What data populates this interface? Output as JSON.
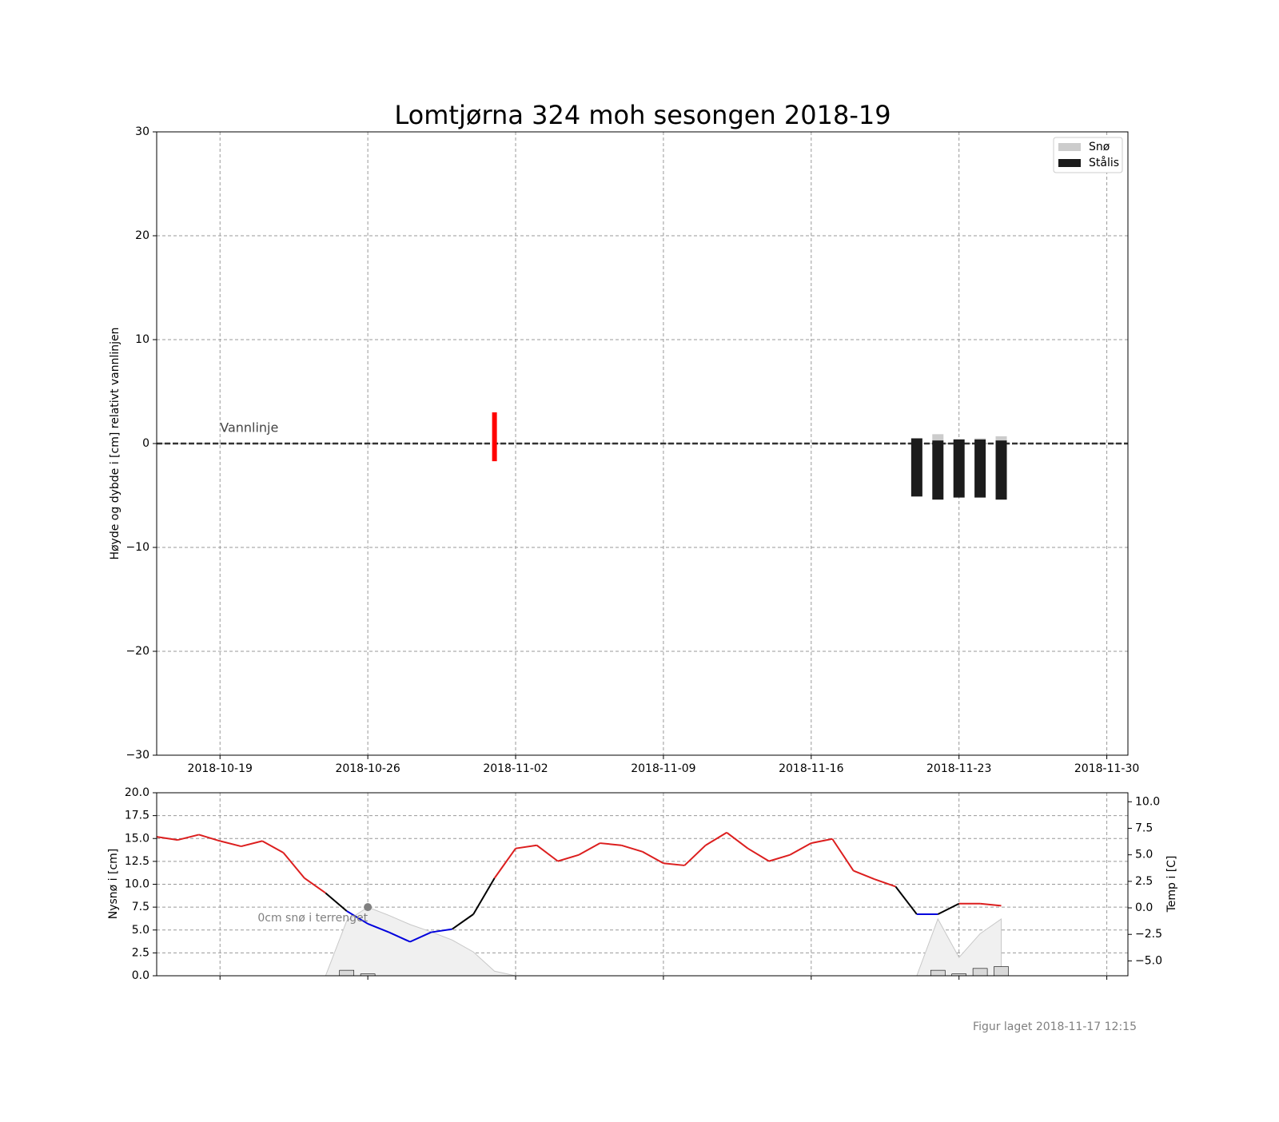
{
  "chart_data": [
    {
      "type": "bar",
      "title": "Lomtjørna 324 moh sesongen 2018-19",
      "ylabel": "Høyde og dybde i [cm] relativt vannlinjen",
      "xlim": [
        "2018-10-16",
        "2018-12-01"
      ],
      "xticks": [
        "2018-10-19",
        "2018-10-26",
        "2018-11-02",
        "2018-11-09",
        "2018-11-16",
        "2018-11-23",
        "2018-11-30"
      ],
      "ylim": [
        -30,
        30
      ],
      "yticks": [
        {
          "value": -30,
          "label": "−30"
        },
        {
          "value": -20,
          "label": "−20"
        },
        {
          "value": -10,
          "label": "−10"
        },
        0,
        10,
        20,
        30
      ],
      "grid": true,
      "legend": "upper right",
      "waterline": {
        "value": 0,
        "label": "Vannlinje"
      },
      "event_line": {
        "x": "2018-11-01",
        "y": [
          -1.7,
          3.0
        ],
        "color": "#ff0000"
      },
      "x": [
        "2018-11-21",
        "2018-11-22",
        "2018-11-23",
        "2018-11-24",
        "2018-11-25"
      ],
      "series": [
        {
          "name": "Snø",
          "color": "#cccccc",
          "values": [
            0,
            0.6,
            0,
            0.1,
            0.4
          ]
        },
        {
          "name": "Stålis",
          "color": "#1c1c1c",
          "values": [
            5.6,
            5.7,
            5.6,
            5.6,
            5.7
          ],
          "base": [
            -5.1,
            -5.4,
            -5.2,
            -5.2,
            -5.4
          ]
        }
      ]
    },
    {
      "type": "line",
      "ylabel": "Nysnø i [cm]",
      "y2label": "Temp i [C]",
      "xlim": [
        "2018-10-16",
        "2018-12-01"
      ],
      "xticks": [
        "2018-10-19",
        "2018-10-26",
        "2018-11-02",
        "2018-11-09",
        "2018-11-16",
        "2018-11-23",
        "2018-11-30"
      ],
      "ylim": [
        0,
        20
      ],
      "yticks": [
        {
          "value": 0,
          "label": "0.0"
        },
        2.5,
        {
          "value": 5,
          "label": "5.0"
        },
        7.5,
        {
          "value": 10,
          "label": "10.0"
        },
        12.5,
        {
          "value": 15,
          "label": "15.0"
        },
        17.5,
        {
          "value": 20,
          "label": "20.0"
        }
      ],
      "y2lim": [
        -6.4,
        10.85
      ],
      "y2ticks": [
        {
          "value": -5,
          "label": "−5.0"
        },
        {
          "value": -2.5,
          "label": "−2.5"
        },
        {
          "value": 0,
          "label": "0.0"
        },
        2.5,
        {
          "value": 5,
          "label": "5.0"
        },
        7.5,
        {
          "value": 10,
          "label": "10.0"
        }
      ],
      "grid": true,
      "x": [
        "2018-10-16",
        "2018-10-17",
        "2018-10-18",
        "2018-10-19",
        "2018-10-20",
        "2018-10-21",
        "2018-10-22",
        "2018-10-23",
        "2018-10-24",
        "2018-10-25",
        "2018-10-26",
        "2018-10-27",
        "2018-10-28",
        "2018-10-29",
        "2018-10-30",
        "2018-10-31",
        "2018-11-01",
        "2018-11-02",
        "2018-11-03",
        "2018-11-04",
        "2018-11-05",
        "2018-11-06",
        "2018-11-07",
        "2018-11-08",
        "2018-11-09",
        "2018-11-10",
        "2018-11-11",
        "2018-11-12",
        "2018-11-13",
        "2018-11-14",
        "2018-11-15",
        "2018-11-16",
        "2018-11-17",
        "2018-11-18",
        "2018-11-19",
        "2018-11-20",
        "2018-11-21",
        "2018-11-22",
        "2018-11-23",
        "2018-11-24",
        "2018-11-25"
      ],
      "series": [
        {
          "type": "area",
          "color": "#f0f0f0",
          "values": [
            0,
            0,
            0,
            0,
            0,
            0,
            0,
            0,
            0,
            6.0,
            7.5,
            6.6,
            5.6,
            4.8,
            3.9,
            2.6,
            0.5,
            0,
            0,
            0,
            0,
            0,
            0,
            0,
            0,
            0,
            0,
            0,
            0,
            0,
            0,
            0,
            0,
            0,
            0,
            0,
            0,
            6.2,
            2.0,
            4.6,
            6.2
          ]
        },
        {
          "type": "line",
          "axis": "y2",
          "values": [
            6.7,
            6.4,
            6.9,
            6.3,
            5.8,
            6.3,
            5.2,
            2.8,
            1.4,
            -0.3,
            -1.5,
            -2.3,
            -3.2,
            -2.3,
            -2.0,
            -0.6,
            2.8,
            5.6,
            5.9,
            4.4,
            5.0,
            6.1,
            5.9,
            5.3,
            4.2,
            4.0,
            5.9,
            7.1,
            5.6,
            4.4,
            5.0,
            6.1,
            6.5,
            3.5,
            2.7,
            2.0,
            -0.6,
            -0.6,
            0.4,
            0.4,
            0.2
          ],
          "segment_colors": [
            "#dc1e1e",
            "#dc1e1e",
            "#dc1e1e",
            "#dc1e1e",
            "#dc1e1e",
            "#dc1e1e",
            "#dc1e1e",
            "#dc1e1e",
            "#000000",
            "#0000dd",
            "#0000dd",
            "#0000dd",
            "#0000dd",
            "#0000dd",
            "#000000",
            "#000000",
            "#dc1e1e",
            "#dc1e1e",
            "#dc1e1e",
            "#dc1e1e",
            "#dc1e1e",
            "#dc1e1e",
            "#dc1e1e",
            "#dc1e1e",
            "#dc1e1e",
            "#dc1e1e",
            "#dc1e1e",
            "#dc1e1e",
            "#dc1e1e",
            "#dc1e1e",
            "#dc1e1e",
            "#dc1e1e",
            "#dc1e1e",
            "#dc1e1e",
            "#dc1e1e",
            "#000000",
            "#0000dd",
            "#000000",
            "#dc1e1e",
            "#dc1e1e"
          ]
        }
      ],
      "bars": {
        "color": "#d9d9d9",
        "x": [
          "2018-10-25",
          "2018-10-26",
          "2018-11-22",
          "2018-11-23",
          "2018-11-24",
          "2018-11-25"
        ],
        "values": [
          0.6,
          0.2,
          0.6,
          0.2,
          0.8,
          1.0
        ]
      },
      "annotation": {
        "text": "0cm snø i terrenget",
        "x": "2018-10-26",
        "y": 7.5
      }
    }
  ],
  "figure_note": "Figur laget 2018-11-17 12:15"
}
